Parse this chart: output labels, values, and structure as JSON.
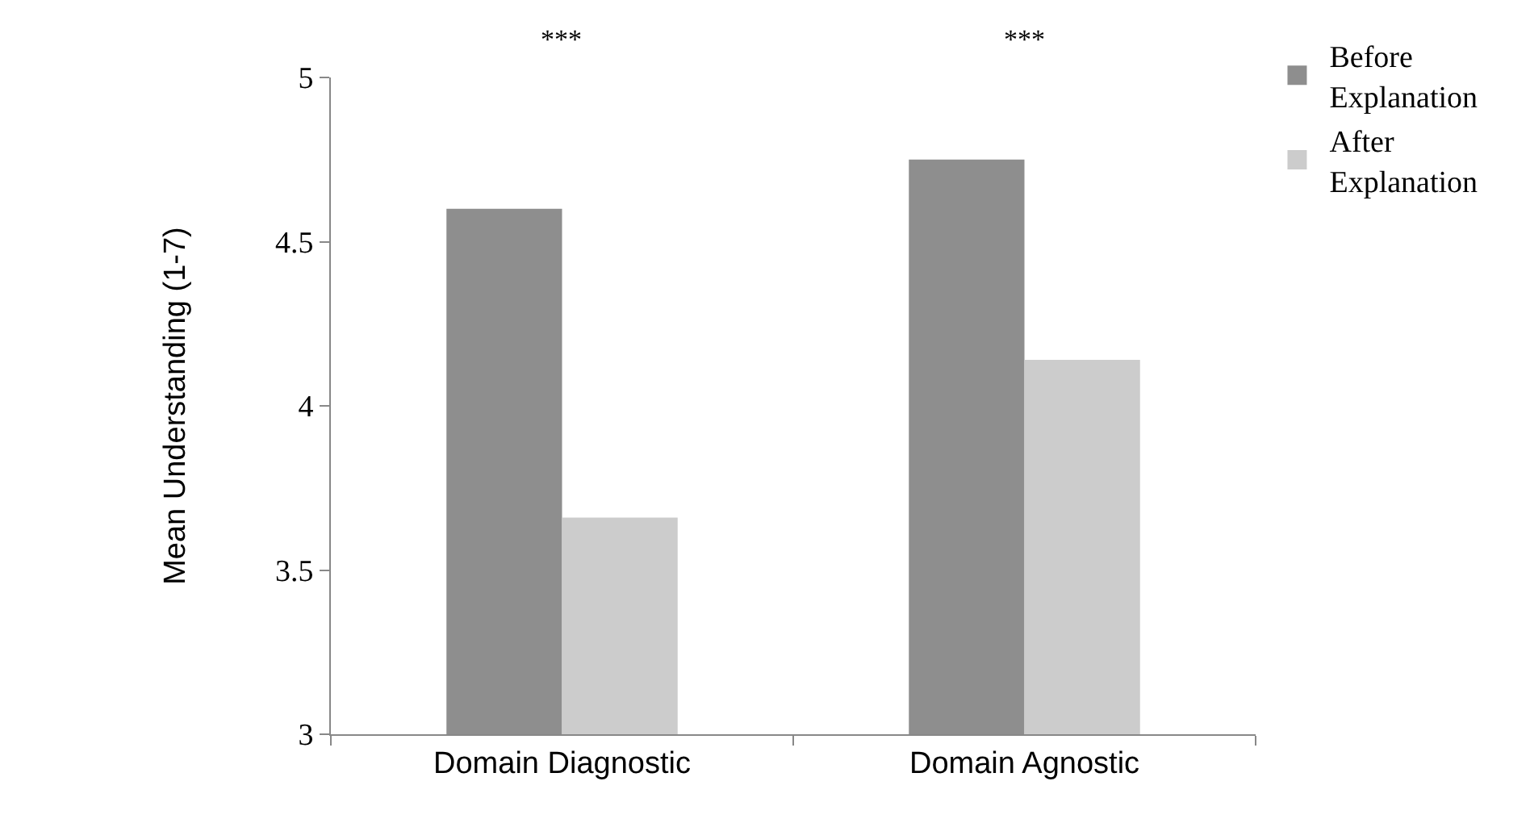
{
  "chart_data": {
    "type": "bar",
    "categories": [
      "Domain Diagnostic",
      "Domain Agnostic"
    ],
    "series": [
      {
        "name": "Before Explanation",
        "color": "#8e8e8e",
        "values": [
          4.6,
          4.75
        ]
      },
      {
        "name": "After Explanation",
        "color": "#cccccc",
        "values": [
          3.66,
          4.14
        ]
      }
    ],
    "ylabel": "Mean Understanding (1-7)",
    "ylim": [
      3,
      5
    ],
    "yticks": [
      3,
      3.5,
      4,
      4.5,
      5
    ],
    "annotations": [
      "***",
      "***"
    ],
    "legend": "top right"
  }
}
